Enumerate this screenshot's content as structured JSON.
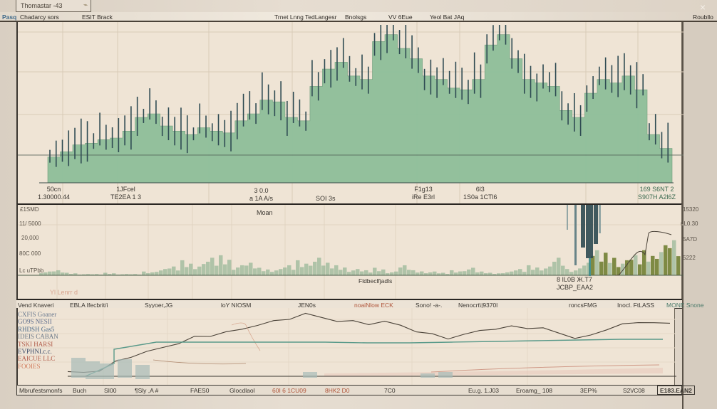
{
  "window": {
    "title": "Thomastar -43",
    "close_icon": "×"
  },
  "menubar": {
    "items": [
      "Pasq",
      "Chadarcy sors",
      "ESIT Brack",
      "Trnet Lnng TedLangesr",
      "Bnolsgs",
      "VV 6Eue",
      "Yeol Bat JAq",
      "Roubllo"
    ]
  },
  "price_panel": {
    "x_labels": [
      {
        "top": "50cn",
        "bottom": "1.30000.44"
      },
      {
        "top": "1JFcel",
        "bottom": "TE2EA 1 3"
      },
      {
        "top": "3 0.0",
        "bottom": "a 1A  A/s"
      },
      {
        "top": "",
        "bottom": "SOI 3s"
      },
      {
        "top": "F1g13",
        "bottom": "iRe E3rl"
      },
      {
        "top": "6l3",
        "bottom": "1S0a 1CTl6"
      },
      {
        "top": "169 S6NT 2",
        "bottom": "S907H A2l6Z"
      }
    ],
    "marker": "Moan"
  },
  "volume_panel": {
    "y_labels_left": [
      "£1SMD",
      "11/ 5000",
      "20,000",
      "80C 000",
      "Lc uTPbb"
    ],
    "y_labels_right": [
      "15320",
      "nL0.30",
      "5A7D",
      "5222"
    ],
    "label_center": "Fldbeclfjadls",
    "annotation": {
      "line1": "8 IL0B  Ж.Т7",
      "line2": "JCBP_EAA2"
    }
  },
  "indicator_strip": {
    "items": [
      {
        "text": "Vend Knaveri",
        "style": ""
      },
      {
        "text": "EBLA Ifecbrit/i",
        "style": ""
      },
      {
        "text": "Syyoer,JG",
        "style": ""
      },
      {
        "text": "loY NIOSM",
        "style": ""
      },
      {
        "text": "JEN0s",
        "style": ""
      },
      {
        "text": "noaiNlow ECK",
        "style": "red"
      },
      {
        "text": "Sono! -a-.",
        "style": ""
      },
      {
        "text": "Nenocrt\\|9370l",
        "style": ""
      },
      {
        "text": "roncsFMG",
        "style": ""
      },
      {
        "text": "Inocl. FtLASS",
        "style": ""
      },
      {
        "text": "MONE Snone",
        "style": "teal"
      }
    ],
    "faint_label": "Yl  Lenrr d"
  },
  "line_panel": {
    "legend": [
      {
        "text": "CXFIS Goaner",
        "color": "#6a7a90"
      },
      {
        "text": "GO9S NESII",
        "color": "#5a6a8a"
      },
      {
        "text": "RHDSH Gas5",
        "color": "#4a6a8a"
      },
      {
        "text": "IDEIS CABAN",
        "color": "#6a7888"
      },
      {
        "text": "TSKI HARSI",
        "color": "#b05a48"
      },
      {
        "text": "EVPHNI.c.c.",
        "color": "#3a4a6a"
      },
      {
        "text": "EAICUE LLC",
        "color": "#b05a48"
      },
      {
        "text": "FOOIES",
        "color": "#d07a5a"
      }
    ]
  },
  "footer": {
    "items": [
      {
        "text": "Mbrufestsmonfs",
        "style": ""
      },
      {
        "text": "Buch",
        "style": ""
      },
      {
        "text": "SI00",
        "style": ""
      },
      {
        "text": "¶Sly ,A #",
        "style": ""
      },
      {
        "text": "FAES0",
        "style": ""
      },
      {
        "text": "Glocdlaol",
        "style": ""
      },
      {
        "text": "60I 6 1CU09",
        "style": "red"
      },
      {
        "text": "8HK2 D0",
        "style": "red"
      },
      {
        "text": "7C0",
        "style": ""
      },
      {
        "text": "Eu.g. 1.J03",
        "style": ""
      },
      {
        "text": "Eroamg_ 108",
        "style": ""
      },
      {
        "text": "3EP%",
        "style": ""
      },
      {
        "text": "S2\\/C08",
        "style": ""
      },
      {
        "text": "E183.EAN2",
        "style": "box"
      }
    ]
  },
  "colors": {
    "background": "#efe4d5",
    "price_fill": "#8fbf9a",
    "candle_dark": "#2e4a52",
    "volume_green": "#7aa884",
    "volume_olive": "#6a7a2a",
    "line_main": "#4a4238",
    "line_teal": "#5a9a8a",
    "line_red": "#c07a6a"
  },
  "chart_data": [
    {
      "type": "area",
      "title": "Price",
      "x": [
        0,
        1,
        2,
        3,
        4,
        5,
        6,
        7,
        8,
        9,
        10,
        11,
        12,
        13,
        14,
        15,
        16,
        17,
        18,
        19,
        20,
        21,
        22,
        23,
        24,
        25,
        26,
        27,
        28,
        29,
        30,
        31,
        32,
        33,
        34,
        35,
        36,
        37,
        38,
        39,
        40,
        41,
        42,
        43,
        44,
        45,
        46,
        47,
        48,
        49
      ],
      "values": [
        15,
        18,
        22,
        23,
        25,
        26,
        30,
        38,
        40,
        33,
        30,
        28,
        32,
        30,
        29,
        36,
        40,
        48,
        47,
        38,
        36,
        56,
        66,
        70,
        62,
        60,
        82,
        86,
        78,
        72,
        62,
        60,
        55,
        54,
        60,
        80,
        86,
        72,
        60,
        58,
        56,
        42,
        38,
        52,
        60,
        58,
        62,
        54,
        28,
        20
      ],
      "grid": true
    },
    {
      "type": "bar",
      "title": "Volume",
      "y_ticks": [
        "£1SMD",
        "11/ 5000",
        "20,000",
        "80C 000",
        "Lc uTPbb"
      ],
      "values": [
        3,
        4,
        2,
        1,
        1,
        2,
        1,
        1,
        3,
        5,
        7,
        12,
        9,
        14,
        16,
        8,
        10,
        6,
        5,
        8,
        12,
        14,
        10,
        8,
        5,
        4,
        6,
        3,
        8,
        4,
        3,
        2,
        4,
        6,
        3,
        2,
        3,
        5,
        8,
        7,
        14,
        5,
        10,
        20,
        18,
        12,
        16,
        20,
        24,
        28
      ],
      "grid": true
    },
    {
      "type": "line",
      "title": "Indicators",
      "series": [
        {
          "name": "main",
          "values": [
            5,
            6,
            10,
            22,
            30,
            36,
            44,
            52,
            60,
            62,
            66,
            72,
            80,
            84,
            88,
            94,
            90,
            86,
            84,
            80,
            82,
            78,
            70,
            64,
            58,
            62,
            70,
            74,
            76,
            74,
            72,
            66,
            60,
            62,
            72,
            78,
            82,
            84,
            80
          ]
        },
        {
          "name": "teal",
          "values": [
            20,
            30,
            30,
            30,
            30,
            30,
            29,
            29,
            30,
            31,
            32,
            33,
            34,
            34
          ]
        },
        {
          "name": "red",
          "values": [
            4,
            6,
            8,
            9,
            10,
            11,
            12,
            14,
            16,
            18,
            20
          ]
        }
      ],
      "grid": true
    }
  ]
}
